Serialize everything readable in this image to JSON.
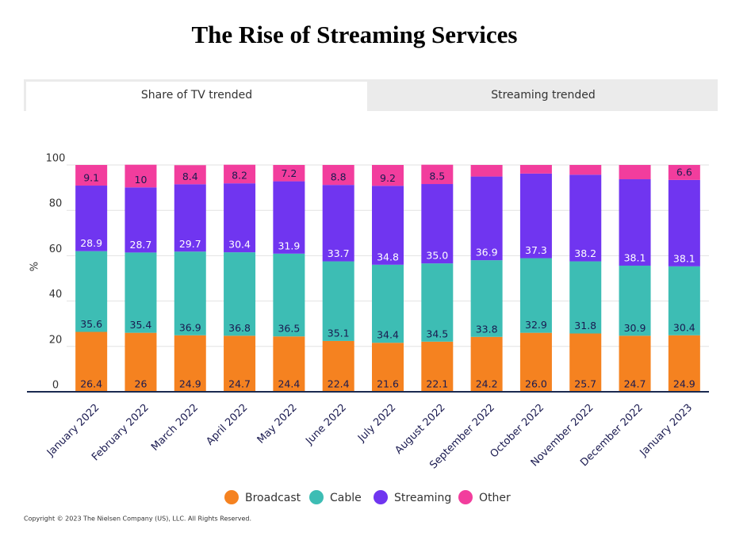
{
  "header": {
    "tabs": [
      "Share of TV trended",
      "Streaming trended"
    ]
  },
  "chart_data": {
    "type": "stacked_bar",
    "title": "The Rise of Streaming Services",
    "y_label": "%",
    "categories": [
      "January 2022",
      "February 2022",
      "March 2022",
      "April 2022",
      "May 2022",
      "June 2022",
      "July 2022",
      "August 2022",
      "September 2022",
      "October 2022",
      "November 2022",
      "December 2022",
      "January 2023"
    ],
    "series": [
      {
        "name": "Broadcast",
        "color": "#f58220",
        "values": [
          26.4,
          26,
          24.9,
          24.7,
          24.4,
          22.4,
          21.6,
          22.1,
          24.2,
          26.0,
          25.7,
          24.7,
          24.9
        ],
        "value_labels": [
          "26.4",
          "26",
          "24.9",
          "24.7",
          "24.4",
          "22.4",
          "21.6",
          "22.1",
          "24.2",
          "26.0",
          "25.7",
          "24.7",
          "24.9"
        ]
      },
      {
        "name": "Cable",
        "color": "#3dbdb4",
        "values": [
          35.6,
          35.4,
          36.9,
          36.8,
          36.5,
          35.1,
          34.4,
          34.5,
          33.8,
          32.9,
          31.8,
          30.9,
          30.4
        ],
        "value_labels": [
          "35.6",
          "35.4",
          "36.9",
          "36.8",
          "36.5",
          "35.1",
          "34.4",
          "34.5",
          "33.8",
          "32.9",
          "31.8",
          "30.9",
          "30.4"
        ]
      },
      {
        "name": "Streaming",
        "color": "#7035f0",
        "values": [
          28.9,
          28.7,
          29.7,
          30.4,
          31.9,
          33.7,
          34.8,
          35.0,
          36.9,
          37.3,
          38.2,
          38.1,
          38.1
        ],
        "value_labels": [
          "28.9",
          "28.7",
          "29.7",
          "30.4",
          "31.9",
          "33.7",
          "34.8",
          "35.0",
          "36.9",
          "37.3",
          "38.2",
          "38.1",
          "38.1"
        ]
      },
      {
        "name": "Other",
        "color": "#f23d9d",
        "values": [
          9.1,
          10,
          8.4,
          8.2,
          7.2,
          8.8,
          9.2,
          8.5,
          5.1,
          3.8,
          4.3,
          6.3,
          6.6
        ],
        "value_labels": [
          "9.1",
          "10",
          "8.4",
          "8.2",
          "7.2",
          "8.8",
          "9.2",
          "8.5",
          null,
          null,
          null,
          null,
          "6.6"
        ]
      }
    ],
    "ylim": [
      0,
      100
    ],
    "yticks": [
      0,
      20,
      40,
      60,
      80,
      100
    ],
    "grid": true
  },
  "footer": {
    "copyright": "Copyright © 2023 The Nielsen Company (US), LLC. All Rights Reserved."
  }
}
